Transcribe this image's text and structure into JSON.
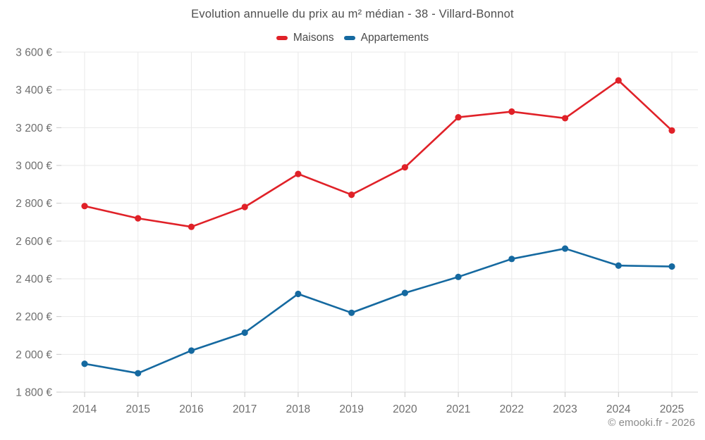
{
  "chart_data": {
    "type": "line",
    "title": "Evolution annuelle du prix au m² médian - 38 - Villard-Bonnot",
    "x": [
      2014,
      2015,
      2016,
      2017,
      2018,
      2019,
      2020,
      2021,
      2022,
      2023,
      2024,
      2025
    ],
    "series": [
      {
        "name": "Maisons",
        "color": "#e02128",
        "values": [
          2785,
          2720,
          2675,
          2780,
          2955,
          2845,
          2990,
          3255,
          3285,
          3250,
          3450,
          3185
        ]
      },
      {
        "name": "Appartements",
        "color": "#1569a0",
        "values": [
          1950,
          1900,
          2020,
          2115,
          2320,
          2220,
          2325,
          2410,
          2505,
          2560,
          2470,
          2465
        ]
      }
    ],
    "ylim": [
      1800,
      3600
    ],
    "y_tick_step": 200,
    "y_tick_labels": [
      "1 800 €",
      "2 000 €",
      "2 200 €",
      "2 400 €",
      "2 600 €",
      "2 800 €",
      "3 000 €",
      "3 200 €",
      "3 400 €",
      "3 600 €"
    ],
    "grid": true,
    "legend_position": "top"
  },
  "footer": {
    "attribution": "© emooki.fr - 2026"
  },
  "colors": {
    "background": "#ffffff",
    "grid": "#e9e9e9",
    "axis_line": "#d6d6d6",
    "tick": "#c8c8c8",
    "tick_text": "#6e6e6e",
    "title_text": "#4e4e4e",
    "attribution_text": "#8a8a8a"
  }
}
